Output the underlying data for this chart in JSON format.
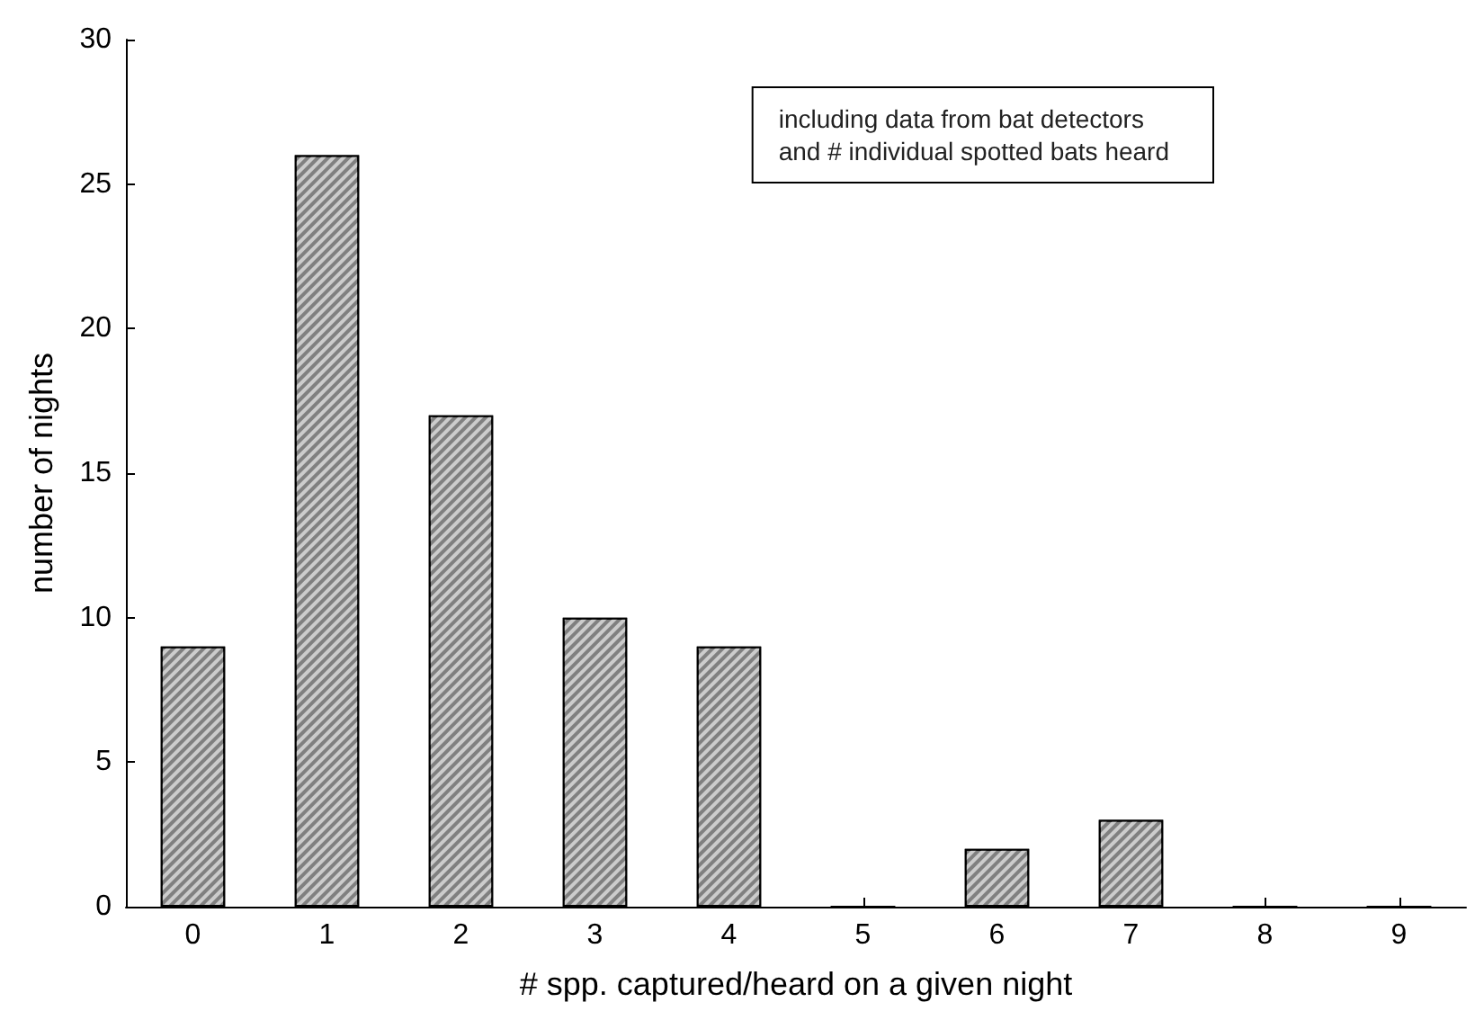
{
  "chart_data": {
    "type": "bar",
    "xlabel": "# spp. captured/heard on a given night",
    "ylabel": "number of nights",
    "categories": [
      "0",
      "1",
      "2",
      "3",
      "4",
      "5",
      "6",
      "7",
      "8",
      "9"
    ],
    "values": [
      9,
      26,
      17,
      10,
      9,
      0,
      2,
      3,
      0,
      0
    ],
    "color": "#808080",
    "ylim": [
      0,
      30
    ],
    "yticks": [
      0,
      5,
      10,
      15,
      20,
      25,
      30
    ],
    "annotations": [
      "including data from bat detectors\nand # individual spotted bats heard"
    ]
  }
}
